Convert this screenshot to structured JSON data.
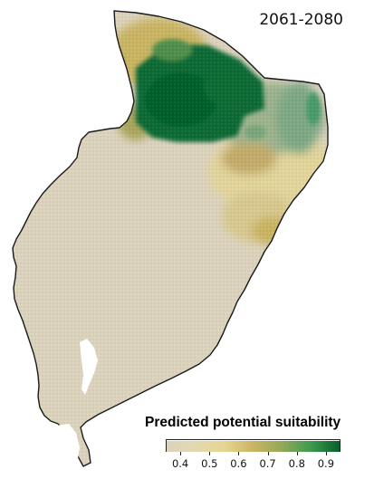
{
  "map": {
    "period_label": "2061-2080",
    "region_outline_color": "#1a1a1a"
  },
  "legend": {
    "title": "Predicted potential suitability",
    "tick_labels": [
      "0.4",
      "0.5",
      "0.6",
      "0.7",
      "0.8",
      "0.9"
    ],
    "tick_values": [
      0.4,
      0.5,
      0.6,
      0.7,
      0.8,
      0.9
    ],
    "scale_min": 0.35,
    "scale_max": 0.95,
    "color_stops": [
      {
        "value": 0.35,
        "color": "#dcd3bd"
      },
      {
        "value": 0.45,
        "color": "#e2d8b0"
      },
      {
        "value": 0.55,
        "color": "#e6d690"
      },
      {
        "value": 0.65,
        "color": "#c9b462"
      },
      {
        "value": 0.75,
        "color": "#93a85a"
      },
      {
        "value": 0.85,
        "color": "#3f9a4e"
      },
      {
        "value": 0.95,
        "color": "#05602a"
      }
    ]
  }
}
